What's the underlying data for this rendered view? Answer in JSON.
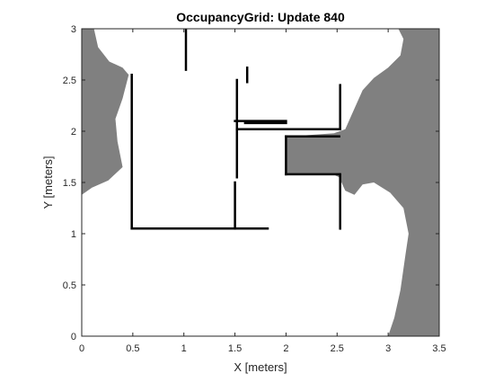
{
  "chart_data": {
    "type": "heatmap",
    "title": "OccupancyGrid: Update 840",
    "xlabel": "X [meters]",
    "ylabel": "Y [meters]",
    "xlim": [
      0,
      3.5
    ],
    "ylim": [
      0,
      3
    ],
    "x_ticks": [
      "0",
      "0.5",
      "1",
      "1.5",
      "2",
      "2.5",
      "3",
      "3.5"
    ],
    "y_ticks": [
      "0",
      "0.5",
      "1",
      "1.5",
      "2",
      "2.5",
      "3"
    ],
    "colormap": "gray",
    "colors": {
      "unknown": "#808080",
      "free": "#ffffff",
      "occupied": "#000000",
      "axis": "#262626"
    },
    "unknown_regions": [
      {
        "name": "left-upper",
        "polygon": [
          [
            0,
            3
          ],
          [
            0.12,
            3
          ],
          [
            0.16,
            2.82
          ],
          [
            0.27,
            2.68
          ],
          [
            0.4,
            2.62
          ],
          [
            0.46,
            2.55
          ],
          [
            0.4,
            2.32
          ],
          [
            0.33,
            2.12
          ],
          [
            0.35,
            1.9
          ],
          [
            0.4,
            1.65
          ],
          [
            0.26,
            1.52
          ],
          [
            0.1,
            1.45
          ],
          [
            0,
            1.38
          ]
        ]
      },
      {
        "name": "right-side",
        "polygon": [
          [
            3.5,
            3
          ],
          [
            3.5,
            0
          ],
          [
            3.0,
            0
          ],
          [
            3.06,
            0.18
          ],
          [
            3.12,
            0.45
          ],
          [
            3.17,
            0.8
          ],
          [
            3.2,
            1.0
          ],
          [
            3.15,
            1.25
          ],
          [
            3.02,
            1.4
          ],
          [
            2.86,
            1.5
          ],
          [
            2.75,
            1.48
          ],
          [
            2.67,
            1.38
          ],
          [
            2.58,
            1.42
          ],
          [
            2.52,
            1.55
          ],
          [
            2.46,
            1.58
          ],
          [
            2.0,
            1.58
          ],
          [
            2.0,
            1.95
          ],
          [
            2.18,
            1.96
          ],
          [
            2.47,
            1.98
          ],
          [
            2.58,
            2.02
          ],
          [
            2.66,
            2.2
          ],
          [
            2.75,
            2.4
          ],
          [
            2.86,
            2.52
          ],
          [
            3.0,
            2.62
          ],
          [
            3.12,
            2.74
          ],
          [
            3.15,
            2.9
          ],
          [
            3.1,
            3
          ]
        ]
      }
    ],
    "occupied_segments": [
      {
        "name": "wall-left",
        "points": [
          [
            0.49,
            2.55
          ],
          [
            0.49,
            1.05
          ]
        ]
      },
      {
        "name": "wall-bottom",
        "points": [
          [
            0.49,
            1.05
          ],
          [
            1.5,
            1.05
          ]
        ]
      },
      {
        "name": "wall-left-room-right",
        "points": [
          [
            1.5,
            1.05
          ],
          [
            1.5,
            1.5
          ]
        ]
      },
      {
        "name": "wall-inner-lower",
        "points": [
          [
            1.52,
            1.55
          ],
          [
            1.52,
            2.5
          ]
        ]
      },
      {
        "name": "wall-middle-horizontal",
        "points": [
          [
            1.52,
            2.02
          ],
          [
            2.52,
            2.02
          ]
        ]
      },
      {
        "name": "wall-room-upper-right",
        "points": [
          [
            1.5,
            2.1
          ],
          [
            2.0,
            2.1
          ]
        ]
      },
      {
        "name": "wall-upper-horizontal",
        "points": [
          [
            1.6,
            2.08
          ],
          [
            2.0,
            2.08
          ]
        ]
      },
      {
        "name": "wall-right-upper",
        "points": [
          [
            2.53,
            2.02
          ],
          [
            2.53,
            2.45
          ]
        ]
      },
      {
        "name": "wall-notch-top",
        "points": [
          [
            2.0,
            1.95
          ],
          [
            2.52,
            1.95
          ]
        ]
      },
      {
        "name": "wall-notch-left",
        "points": [
          [
            2.0,
            1.95
          ],
          [
            2.0,
            1.58
          ]
        ]
      },
      {
        "name": "wall-notch-bottom",
        "points": [
          [
            2.0,
            1.58
          ],
          [
            2.52,
            1.58
          ]
        ]
      },
      {
        "name": "wall-right-lower",
        "points": [
          [
            2.53,
            1.58
          ],
          [
            2.53,
            1.05
          ]
        ]
      },
      {
        "name": "wall-top-stub",
        "points": [
          [
            1.02,
            3.0
          ],
          [
            1.02,
            2.6
          ]
        ]
      },
      {
        "name": "wall-inner-stub",
        "points": [
          [
            1.62,
            2.62
          ],
          [
            1.62,
            2.48
          ]
        ]
      },
      {
        "name": "wall-bottom-stub",
        "points": [
          [
            1.5,
            1.05
          ],
          [
            1.82,
            1.05
          ]
        ]
      }
    ]
  }
}
